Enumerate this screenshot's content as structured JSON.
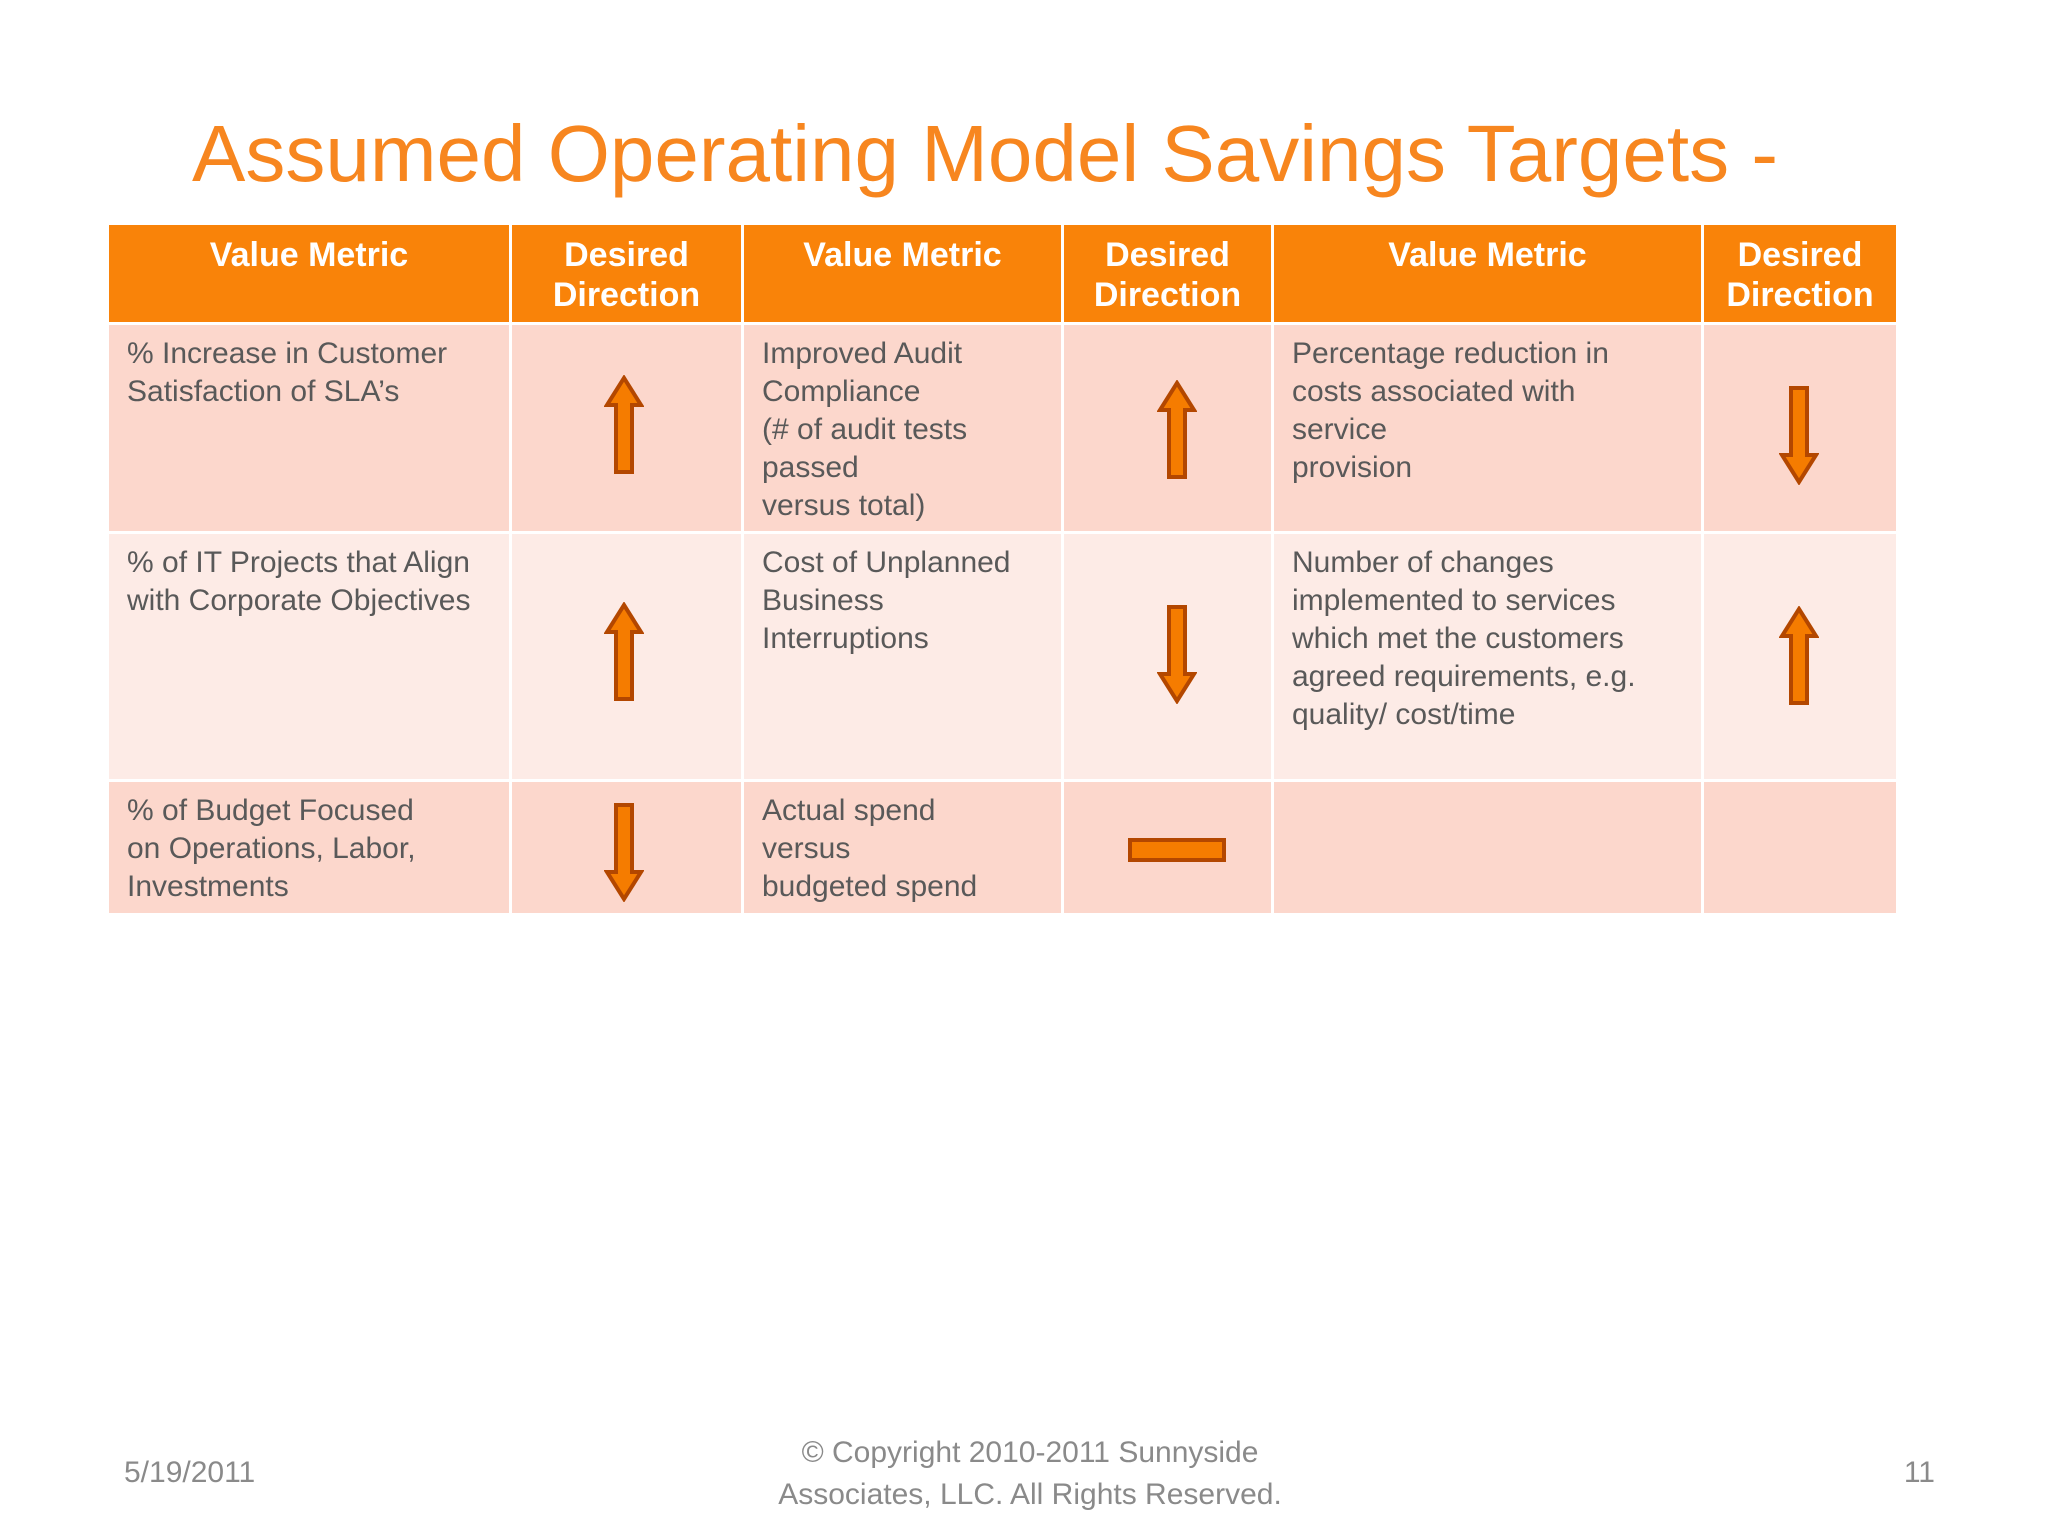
{
  "slide": {
    "title": "Assumed Operating Model Savings Targets -"
  },
  "table": {
    "headers": [
      "Value Metric",
      "Desired Direction",
      "Value Metric",
      "Desired Direction",
      "Value Metric",
      "Desired Direction"
    ],
    "rows": [
      {
        "cells": [
          {
            "metric": [
              "% Increase in Customer",
              "Satisfaction of SLA’s"
            ],
            "direction": "up"
          },
          {
            "metric": [
              "Improved Audit",
              "Compliance",
              "(# of audit tests",
              "passed",
              "versus total)"
            ],
            "direction": "up"
          },
          {
            "metric": [
              "Percentage reduction in",
              "costs associated with",
              "service",
              "provision"
            ],
            "direction": "down"
          }
        ]
      },
      {
        "cells": [
          {
            "metric": [
              "% of IT Projects that Align",
              "with Corporate Objectives"
            ],
            "direction": "up"
          },
          {
            "metric": [
              "Cost of Unplanned",
              "Business",
              "Interruptions"
            ],
            "direction": "down"
          },
          {
            "metric": [
              "Number of changes",
              "implemented to services",
              "which met the customers",
              "agreed requirements, e.g.",
              "quality/ cost/time"
            ],
            "direction": "up"
          }
        ]
      },
      {
        "cells": [
          {
            "metric": [
              "% of Budget Focused",
              "on Operations, Labor,",
              "Investments"
            ],
            "direction": "down"
          },
          {
            "metric": [
              "Actual spend",
              "versus",
              "budgeted spend"
            ],
            "direction": "flat"
          },
          {
            "metric": [],
            "direction": "none"
          }
        ]
      }
    ]
  },
  "footer": {
    "date": "5/19/2011",
    "copyright_line1": "© Copyright 2010-2011 Sunnyside",
    "copyright_line2": "Associates, LLC. All Rights Reserved.",
    "page_number": "11"
  },
  "colors": {
    "title": "#F7861F",
    "header_bg": "#F98309",
    "row_a_bg": "#FCD7CC",
    "row_b_bg": "#FDEBE6",
    "arrow_fill": "#F57C00",
    "arrow_stroke": "#B34700"
  },
  "icons": {
    "up": "arrow-up-icon",
    "down": "arrow-down-icon",
    "flat": "dash-icon"
  }
}
